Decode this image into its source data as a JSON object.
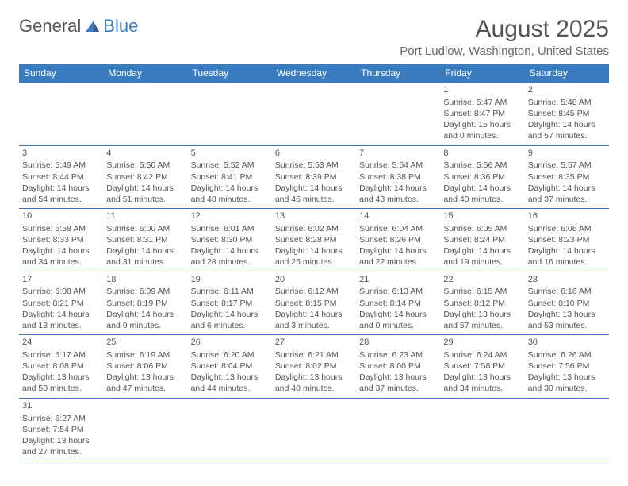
{
  "logo": {
    "text1": "General",
    "text2": "Blue"
  },
  "title": "August 2025",
  "subtitle": "Port Ludlow, Washington, United States",
  "colors": {
    "header_bg": "#3a7cbf",
    "border": "#3a7cbf",
    "text": "#555555",
    "bg": "#ffffff"
  },
  "days_of_week": [
    "Sunday",
    "Monday",
    "Tuesday",
    "Wednesday",
    "Thursday",
    "Friday",
    "Saturday"
  ],
  "weeks": [
    [
      null,
      null,
      null,
      null,
      null,
      {
        "n": "1",
        "sr": "Sunrise: 5:47 AM",
        "ss": "Sunset: 8:47 PM",
        "dl": "Daylight: 15 hours and 0 minutes."
      },
      {
        "n": "2",
        "sr": "Sunrise: 5:48 AM",
        "ss": "Sunset: 8:45 PM",
        "dl": "Daylight: 14 hours and 57 minutes."
      }
    ],
    [
      {
        "n": "3",
        "sr": "Sunrise: 5:49 AM",
        "ss": "Sunset: 8:44 PM",
        "dl": "Daylight: 14 hours and 54 minutes."
      },
      {
        "n": "4",
        "sr": "Sunrise: 5:50 AM",
        "ss": "Sunset: 8:42 PM",
        "dl": "Daylight: 14 hours and 51 minutes."
      },
      {
        "n": "5",
        "sr": "Sunrise: 5:52 AM",
        "ss": "Sunset: 8:41 PM",
        "dl": "Daylight: 14 hours and 48 minutes."
      },
      {
        "n": "6",
        "sr": "Sunrise: 5:53 AM",
        "ss": "Sunset: 8:39 PM",
        "dl": "Daylight: 14 hours and 46 minutes."
      },
      {
        "n": "7",
        "sr": "Sunrise: 5:54 AM",
        "ss": "Sunset: 8:38 PM",
        "dl": "Daylight: 14 hours and 43 minutes."
      },
      {
        "n": "8",
        "sr": "Sunrise: 5:56 AM",
        "ss": "Sunset: 8:36 PM",
        "dl": "Daylight: 14 hours and 40 minutes."
      },
      {
        "n": "9",
        "sr": "Sunrise: 5:57 AM",
        "ss": "Sunset: 8:35 PM",
        "dl": "Daylight: 14 hours and 37 minutes."
      }
    ],
    [
      {
        "n": "10",
        "sr": "Sunrise: 5:58 AM",
        "ss": "Sunset: 8:33 PM",
        "dl": "Daylight: 14 hours and 34 minutes."
      },
      {
        "n": "11",
        "sr": "Sunrise: 6:00 AM",
        "ss": "Sunset: 8:31 PM",
        "dl": "Daylight: 14 hours and 31 minutes."
      },
      {
        "n": "12",
        "sr": "Sunrise: 6:01 AM",
        "ss": "Sunset: 8:30 PM",
        "dl": "Daylight: 14 hours and 28 minutes."
      },
      {
        "n": "13",
        "sr": "Sunrise: 6:02 AM",
        "ss": "Sunset: 8:28 PM",
        "dl": "Daylight: 14 hours and 25 minutes."
      },
      {
        "n": "14",
        "sr": "Sunrise: 6:04 AM",
        "ss": "Sunset: 8:26 PM",
        "dl": "Daylight: 14 hours and 22 minutes."
      },
      {
        "n": "15",
        "sr": "Sunrise: 6:05 AM",
        "ss": "Sunset: 8:24 PM",
        "dl": "Daylight: 14 hours and 19 minutes."
      },
      {
        "n": "16",
        "sr": "Sunrise: 6:06 AM",
        "ss": "Sunset: 8:23 PM",
        "dl": "Daylight: 14 hours and 16 minutes."
      }
    ],
    [
      {
        "n": "17",
        "sr": "Sunrise: 6:08 AM",
        "ss": "Sunset: 8:21 PM",
        "dl": "Daylight: 14 hours and 13 minutes."
      },
      {
        "n": "18",
        "sr": "Sunrise: 6:09 AM",
        "ss": "Sunset: 8:19 PM",
        "dl": "Daylight: 14 hours and 9 minutes."
      },
      {
        "n": "19",
        "sr": "Sunrise: 6:11 AM",
        "ss": "Sunset: 8:17 PM",
        "dl": "Daylight: 14 hours and 6 minutes."
      },
      {
        "n": "20",
        "sr": "Sunrise: 6:12 AM",
        "ss": "Sunset: 8:15 PM",
        "dl": "Daylight: 14 hours and 3 minutes."
      },
      {
        "n": "21",
        "sr": "Sunrise: 6:13 AM",
        "ss": "Sunset: 8:14 PM",
        "dl": "Daylight: 14 hours and 0 minutes."
      },
      {
        "n": "22",
        "sr": "Sunrise: 6:15 AM",
        "ss": "Sunset: 8:12 PM",
        "dl": "Daylight: 13 hours and 57 minutes."
      },
      {
        "n": "23",
        "sr": "Sunrise: 6:16 AM",
        "ss": "Sunset: 8:10 PM",
        "dl": "Daylight: 13 hours and 53 minutes."
      }
    ],
    [
      {
        "n": "24",
        "sr": "Sunrise: 6:17 AM",
        "ss": "Sunset: 8:08 PM",
        "dl": "Daylight: 13 hours and 50 minutes."
      },
      {
        "n": "25",
        "sr": "Sunrise: 6:19 AM",
        "ss": "Sunset: 8:06 PM",
        "dl": "Daylight: 13 hours and 47 minutes."
      },
      {
        "n": "26",
        "sr": "Sunrise: 6:20 AM",
        "ss": "Sunset: 8:04 PM",
        "dl": "Daylight: 13 hours and 44 minutes."
      },
      {
        "n": "27",
        "sr": "Sunrise: 6:21 AM",
        "ss": "Sunset: 8:02 PM",
        "dl": "Daylight: 13 hours and 40 minutes."
      },
      {
        "n": "28",
        "sr": "Sunrise: 6:23 AM",
        "ss": "Sunset: 8:00 PM",
        "dl": "Daylight: 13 hours and 37 minutes."
      },
      {
        "n": "29",
        "sr": "Sunrise: 6:24 AM",
        "ss": "Sunset: 7:58 PM",
        "dl": "Daylight: 13 hours and 34 minutes."
      },
      {
        "n": "30",
        "sr": "Sunrise: 6:26 AM",
        "ss": "Sunset: 7:56 PM",
        "dl": "Daylight: 13 hours and 30 minutes."
      }
    ],
    [
      {
        "n": "31",
        "sr": "Sunrise: 6:27 AM",
        "ss": "Sunset: 7:54 PM",
        "dl": "Daylight: 13 hours and 27 minutes."
      },
      null,
      null,
      null,
      null,
      null,
      null
    ]
  ]
}
